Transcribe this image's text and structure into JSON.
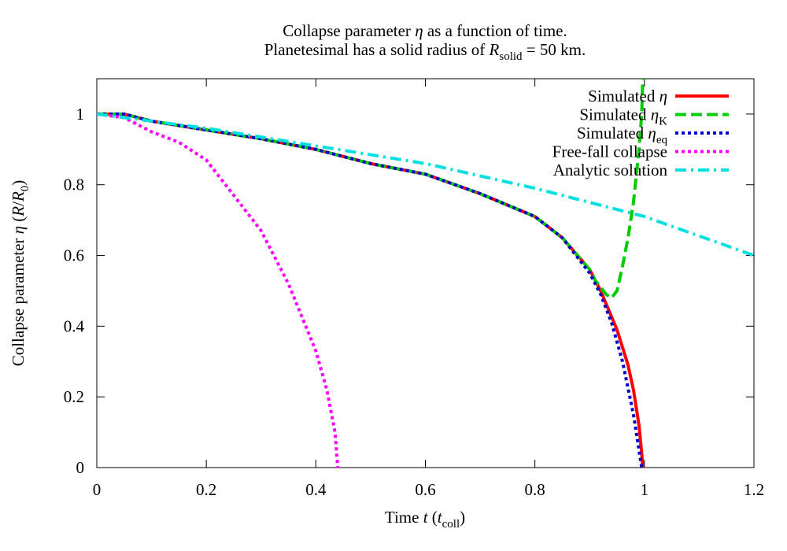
{
  "chart_data": {
    "type": "line",
    "title": [
      [
        "Collapse parameter ",
        {
          "italic": "η"
        },
        " as a function of time."
      ],
      [
        "Planetesimal has a solid radius of ",
        {
          "italic": "R"
        },
        {
          "sub": "solid"
        },
        " = 50 km."
      ]
    ],
    "xlabel": [
      "Time ",
      {
        "italic": "t"
      },
      " (",
      {
        "italic": "t"
      },
      {
        "sub": "coll"
      },
      ")"
    ],
    "ylabel": [
      "Collapse parameter ",
      {
        "italic": "η"
      },
      " (",
      {
        "italic": "R"
      },
      "/",
      {
        "italic": "R"
      },
      {
        "sub": "0"
      },
      ")"
    ],
    "xlim": [
      0,
      1.2
    ],
    "xticks": [
      0,
      0.2,
      0.4,
      0.6,
      0.8,
      1,
      1.2
    ],
    "ylim": [
      0,
      1.1
    ],
    "yticks": [
      0,
      0.2,
      0.4,
      0.6,
      0.8,
      1
    ],
    "legend": "top-right",
    "series": [
      {
        "name": [
          "Simulated ",
          {
            "italic": "η"
          }
        ],
        "color": "#ff0000",
        "dash": "solid",
        "x": [
          0,
          0.05,
          0.1,
          0.2,
          0.3,
          0.4,
          0.5,
          0.6,
          0.7,
          0.8,
          0.85,
          0.9,
          0.92,
          0.95,
          0.97,
          0.98,
          0.99,
          0.995,
          0.997
        ],
        "values": [
          1,
          1.0,
          0.98,
          0.955,
          0.93,
          0.9,
          0.86,
          0.83,
          0.775,
          0.71,
          0.65,
          0.56,
          0.5,
          0.39,
          0.29,
          0.22,
          0.12,
          0.04,
          0
        ]
      },
      {
        "name": [
          "Simulated ",
          {
            "italic": "η"
          },
          {
            "sub": "K"
          }
        ],
        "color": "#00cc00",
        "dash": "dashed",
        "x": [
          0,
          0.05,
          0.1,
          0.2,
          0.3,
          0.4,
          0.5,
          0.6,
          0.7,
          0.8,
          0.85,
          0.9,
          0.91,
          0.92,
          0.93,
          0.94,
          0.95,
          0.96,
          0.97,
          0.98,
          0.99,
          0.995,
          0.997
        ],
        "values": [
          1,
          1.0,
          0.98,
          0.955,
          0.93,
          0.9,
          0.86,
          0.83,
          0.775,
          0.71,
          0.65,
          0.56,
          0.53,
          0.51,
          0.49,
          0.48,
          0.5,
          0.57,
          0.65,
          0.75,
          0.9,
          1.0,
          1.1
        ]
      },
      {
        "name": [
          "Simulated ",
          {
            "italic": "η"
          },
          {
            "sub": "eq"
          }
        ],
        "color": "#0000cc",
        "dash": "dotted",
        "x": [
          0,
          0.05,
          0.1,
          0.2,
          0.3,
          0.4,
          0.5,
          0.6,
          0.7,
          0.8,
          0.85,
          0.9,
          0.92,
          0.94,
          0.96,
          0.98,
          0.995
        ],
        "values": [
          1,
          1.0,
          0.98,
          0.955,
          0.93,
          0.9,
          0.86,
          0.83,
          0.775,
          0.71,
          0.65,
          0.55,
          0.49,
          0.41,
          0.3,
          0.15,
          0
        ]
      },
      {
        "name": [
          "Free-fall collapse"
        ],
        "color": "#ff00ff",
        "dash": "dotted",
        "x": [
          0,
          0.05,
          0.1,
          0.15,
          0.2,
          0.25,
          0.3,
          0.35,
          0.4,
          0.42,
          0.435,
          0.44
        ],
        "values": [
          1,
          0.99,
          0.95,
          0.92,
          0.87,
          0.77,
          0.67,
          0.52,
          0.33,
          0.22,
          0.1,
          0
        ]
      },
      {
        "name": [
          "Analytic solution"
        ],
        "color": "#00e0e0",
        "dash": "dashdot",
        "x": [
          0,
          0.2,
          0.4,
          0.6,
          0.8,
          1,
          1.2
        ],
        "values": [
          1,
          0.96,
          0.91,
          0.86,
          0.79,
          0.71,
          0.6
        ]
      }
    ]
  }
}
